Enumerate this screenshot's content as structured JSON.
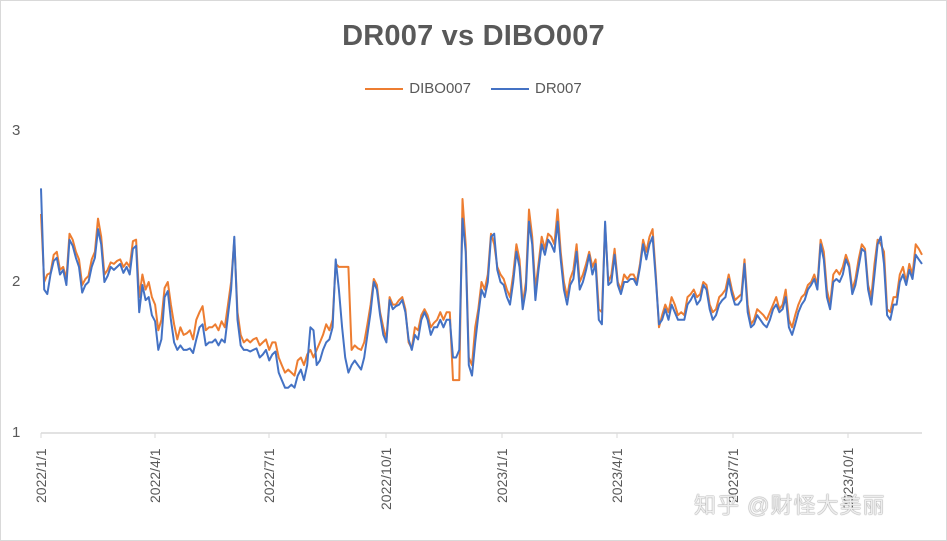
{
  "chart_data": {
    "type": "line",
    "title": "DR007 vs DIBO007",
    "xlabel": "",
    "ylabel": "",
    "ylim": [
      1,
      3
    ],
    "yticks": [
      1,
      2,
      3
    ],
    "xticks": [
      "2022/1/1",
      "2022/4/1",
      "2022/7/1",
      "2022/10/1",
      "2023/1/1",
      "2023/4/1",
      "2023/7/1",
      "2023/10/1"
    ],
    "grid": false,
    "legend_position": "top",
    "legend": [
      "DIBO007",
      "DR007"
    ],
    "x_range": [
      "2022/1/1",
      "2023/12/29"
    ],
    "series": [
      {
        "name": "DIBO007",
        "color": "#ED7D31",
        "values": [
          2.45,
          2.0,
          2.05,
          2.06,
          2.18,
          2.2,
          2.08,
          2.1,
          2.02,
          2.32,
          2.28,
          2.2,
          2.15,
          1.98,
          2.02,
          2.04,
          2.15,
          2.2,
          2.42,
          2.3,
          2.05,
          2.08,
          2.13,
          2.12,
          2.14,
          2.15,
          2.1,
          2.13,
          2.1,
          2.27,
          2.28,
          1.9,
          2.05,
          1.95,
          2.0,
          1.9,
          1.85,
          1.68,
          1.75,
          1.96,
          2.0,
          1.85,
          1.72,
          1.62,
          1.7,
          1.65,
          1.66,
          1.68,
          1.62,
          1.75,
          1.8,
          1.84,
          1.68,
          1.7,
          1.7,
          1.72,
          1.68,
          1.74,
          1.7,
          1.85,
          2.0,
          2.28,
          1.8,
          1.65,
          1.6,
          1.62,
          1.6,
          1.62,
          1.63,
          1.58,
          1.6,
          1.62,
          1.55,
          1.6,
          1.6,
          1.5,
          1.45,
          1.4,
          1.42,
          1.4,
          1.38,
          1.48,
          1.5,
          1.45,
          1.52,
          1.55,
          1.5,
          1.55,
          1.6,
          1.65,
          1.72,
          1.68,
          1.75,
          2.12,
          2.1,
          2.1,
          2.1,
          2.1,
          1.55,
          1.58,
          1.56,
          1.55,
          1.6,
          1.72,
          1.85,
          2.02,
          1.98,
          1.8,
          1.7,
          1.62,
          1.9,
          1.85,
          1.85,
          1.88,
          1.9,
          1.82,
          1.6,
          1.56,
          1.7,
          1.68,
          1.78,
          1.82,
          1.78,
          1.7,
          1.73,
          1.75,
          1.8,
          1.75,
          1.8,
          1.8,
          1.35,
          1.35,
          1.35,
          2.55,
          2.25,
          1.5,
          1.45,
          1.7,
          1.82,
          2.0,
          1.95,
          2.05,
          2.32,
          2.25,
          2.1,
          2.05,
          2.02,
          1.95,
          1.9,
          2.05,
          2.25,
          2.15,
          1.85,
          2.0,
          2.48,
          2.3,
          1.95,
          2.12,
          2.3,
          2.22,
          2.32,
          2.3,
          2.25,
          2.48,
          2.2,
          2.0,
          1.9,
          2.02,
          2.08,
          2.25,
          2.0,
          2.05,
          2.12,
          2.2,
          2.1,
          2.15,
          1.82,
          1.8,
          2.38,
          2.0,
          2.05,
          2.22,
          2.0,
          1.95,
          2.05,
          2.02,
          2.05,
          2.05,
          2.0,
          2.12,
          2.28,
          2.2,
          2.3,
          2.35,
          2.05,
          1.7,
          1.78,
          1.85,
          1.8,
          1.9,
          1.85,
          1.78,
          1.8,
          1.78,
          1.9,
          1.92,
          1.95,
          1.9,
          1.92,
          2.0,
          1.98,
          1.85,
          1.8,
          1.82,
          1.9,
          1.92,
          1.95,
          2.05,
          1.95,
          1.88,
          1.9,
          1.92,
          2.15,
          1.85,
          1.72,
          1.75,
          1.82,
          1.8,
          1.78,
          1.75,
          1.8,
          1.85,
          1.9,
          1.82,
          1.85,
          1.95,
          1.75,
          1.7,
          1.78,
          1.85,
          1.9,
          1.92,
          1.98,
          2.0,
          2.05,
          1.98,
          2.28,
          2.2,
          1.95,
          1.85,
          2.05,
          2.08,
          2.05,
          2.1,
          2.18,
          2.12,
          1.95,
          2.02,
          2.15,
          2.25,
          2.22,
          1.98,
          1.9,
          2.12,
          2.28,
          2.25,
          2.2,
          1.82,
          1.8,
          1.9,
          1.9,
          2.05,
          2.1,
          2.0,
          2.12,
          2.05,
          2.25,
          2.22,
          2.18
        ]
      },
      {
        "name": "DR007",
        "color": "#4472C4",
        "values": [
          2.62,
          1.95,
          1.92,
          2.05,
          2.14,
          2.16,
          2.05,
          2.08,
          1.98,
          2.28,
          2.24,
          2.16,
          2.1,
          1.93,
          1.98,
          2.0,
          2.1,
          2.16,
          2.35,
          2.25,
          2.0,
          2.04,
          2.1,
          2.08,
          2.1,
          2.12,
          2.06,
          2.1,
          2.05,
          2.22,
          2.24,
          1.8,
          1.98,
          1.88,
          1.9,
          1.78,
          1.74,
          1.55,
          1.62,
          1.9,
          1.94,
          1.75,
          1.6,
          1.55,
          1.58,
          1.55,
          1.55,
          1.56,
          1.53,
          1.62,
          1.7,
          1.72,
          1.58,
          1.6,
          1.6,
          1.62,
          1.58,
          1.62,
          1.6,
          1.78,
          1.95,
          2.3,
          1.75,
          1.58,
          1.55,
          1.55,
          1.54,
          1.55,
          1.56,
          1.5,
          1.52,
          1.55,
          1.48,
          1.52,
          1.54,
          1.4,
          1.35,
          1.3,
          1.3,
          1.32,
          1.3,
          1.38,
          1.42,
          1.35,
          1.45,
          1.7,
          1.68,
          1.45,
          1.48,
          1.55,
          1.6,
          1.62,
          1.7,
          2.15,
          1.95,
          1.7,
          1.5,
          1.4,
          1.45,
          1.48,
          1.45,
          1.42,
          1.5,
          1.65,
          1.8,
          2.0,
          1.95,
          1.78,
          1.65,
          1.6,
          1.88,
          1.82,
          1.84,
          1.85,
          1.88,
          1.8,
          1.62,
          1.55,
          1.65,
          1.62,
          1.75,
          1.8,
          1.75,
          1.65,
          1.7,
          1.7,
          1.75,
          1.7,
          1.75,
          1.75,
          1.5,
          1.5,
          1.55,
          2.42,
          2.2,
          1.45,
          1.38,
          1.6,
          1.78,
          1.95,
          1.9,
          2.0,
          2.3,
          2.32,
          2.08,
          2.0,
          1.98,
          1.9,
          1.85,
          2.0,
          2.2,
          2.1,
          1.82,
          1.95,
          2.4,
          2.25,
          1.88,
          2.08,
          2.25,
          2.18,
          2.28,
          2.25,
          2.2,
          2.4,
          2.15,
          1.95,
          1.85,
          1.98,
          2.02,
          2.2,
          1.95,
          2.0,
          2.08,
          2.18,
          2.05,
          2.12,
          1.75,
          1.72,
          2.4,
          1.98,
          2.0,
          2.18,
          1.98,
          1.92,
          2.0,
          2.0,
          2.02,
          2.02,
          1.98,
          2.1,
          2.25,
          2.15,
          2.25,
          2.3,
          2.02,
          1.72,
          1.75,
          1.82,
          1.75,
          1.85,
          1.8,
          1.75,
          1.75,
          1.75,
          1.85,
          1.88,
          1.92,
          1.85,
          1.88,
          1.98,
          1.95,
          1.82,
          1.75,
          1.78,
          1.85,
          1.88,
          1.9,
          2.02,
          1.92,
          1.85,
          1.85,
          1.88,
          2.12,
          1.8,
          1.7,
          1.72,
          1.78,
          1.75,
          1.72,
          1.7,
          1.75,
          1.82,
          1.85,
          1.8,
          1.82,
          1.9,
          1.7,
          1.65,
          1.72,
          1.8,
          1.85,
          1.88,
          1.95,
          1.98,
          2.02,
          1.95,
          2.25,
          2.15,
          1.9,
          1.82,
          2.0,
          2.02,
          2.0,
          2.05,
          2.15,
          2.1,
          1.92,
          1.98,
          2.1,
          2.22,
          2.2,
          1.95,
          1.85,
          2.05,
          2.25,
          2.3,
          2.12,
          1.78,
          1.75,
          1.85,
          1.85,
          2.0,
          2.05,
          1.98,
          2.08,
          2.02,
          2.18,
          2.15,
          2.12
        ]
      }
    ]
  },
  "watermark": "知乎 @财怪大美丽"
}
